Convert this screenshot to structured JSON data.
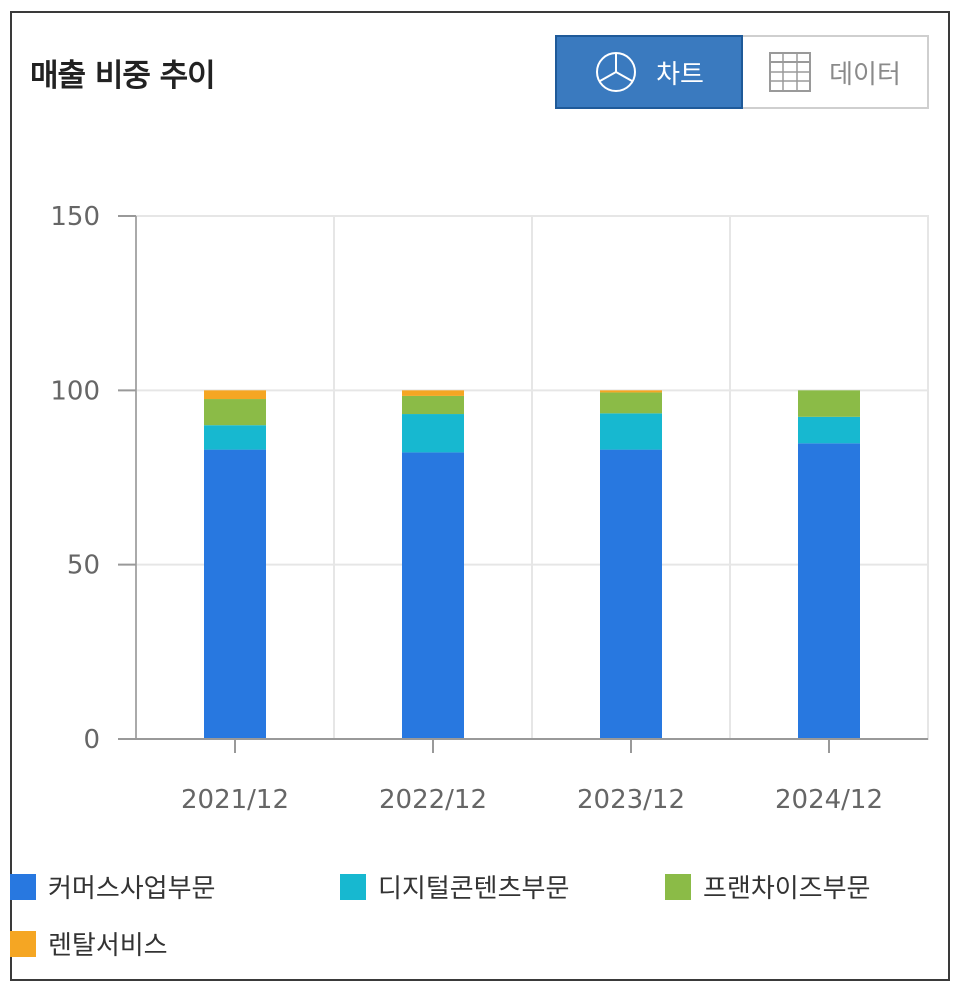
{
  "header": {
    "title": "매출 비중 추이"
  },
  "toggle": {
    "chart_label": "차트",
    "data_label": "데이터",
    "chart_icon": "pie-chart-icon",
    "data_icon": "table-grid-icon",
    "active": "chart"
  },
  "colors": {
    "commerce": "#2878e0",
    "digital": "#17b8d0",
    "franchise": "#8bbb47",
    "rental": "#f5a623",
    "active_button": "#3a7abf"
  },
  "chart_data": {
    "type": "bar",
    "stacked": true,
    "categories": [
      "2021/12",
      "2022/12",
      "2023/12",
      "2024/12"
    ],
    "series": [
      {
        "name": "커머스사업부문",
        "values": [
          83,
          82.2,
          83,
          84.8
        ]
      },
      {
        "name": "디지털콘텐츠부문",
        "values": [
          7,
          11,
          10.4,
          7.6
        ]
      },
      {
        "name": "프랜차이즈부문",
        "values": [
          7.5,
          5.2,
          6,
          7.6
        ]
      },
      {
        "name": "렌탈서비스",
        "values": [
          2.5,
          1.6,
          0.6,
          0
        ]
      }
    ],
    "ylim": [
      0,
      150
    ],
    "yticks": [
      "0",
      "50",
      "100",
      "150"
    ],
    "grid": true,
    "legend_position": "bottom"
  }
}
